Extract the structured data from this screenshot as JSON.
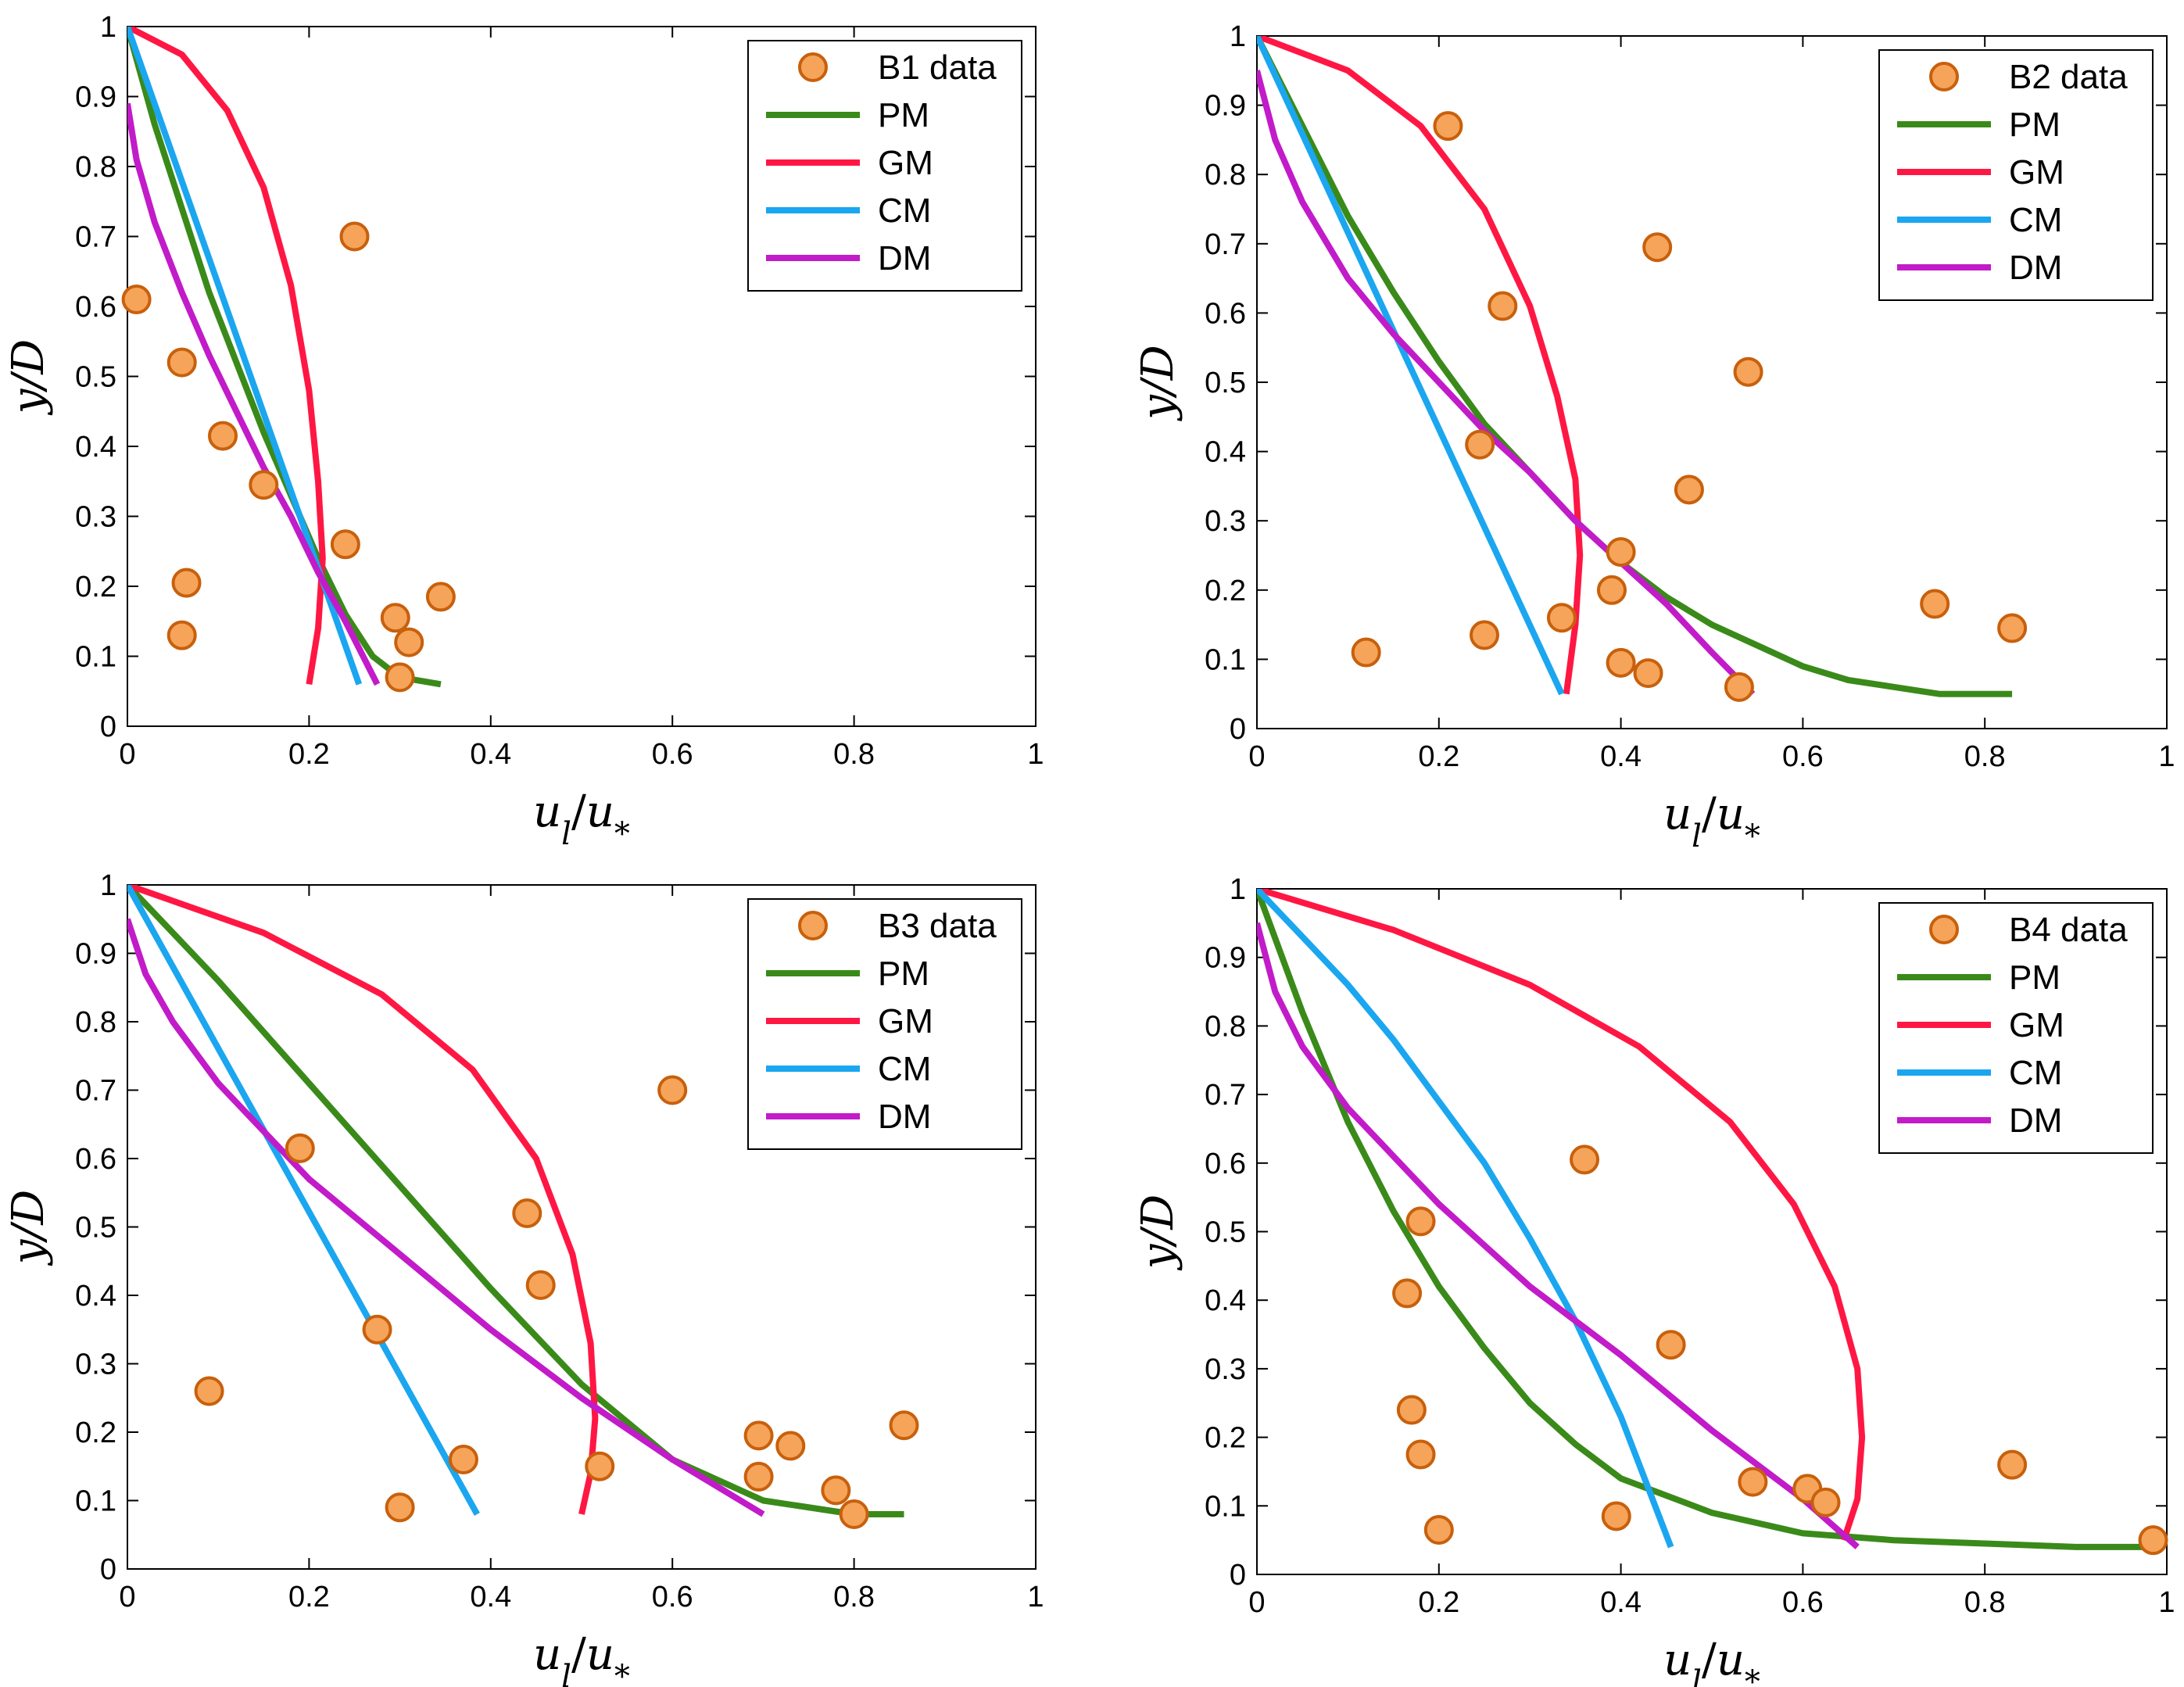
{
  "colors": {
    "PM": "#3a8a1a",
    "GM": "#ff1744",
    "CM": "#1ba6f0",
    "DM": "#c21bc9",
    "marker_fill": "#f5a45a",
    "marker_edge": "#c8600c"
  },
  "chart_data": [
    {
      "type": "scatter",
      "panel": "B1",
      "xlabel": "u_l/u_*",
      "ylabel": "y/D",
      "xlim": [
        0,
        1
      ],
      "ylim": [
        0,
        1
      ],
      "xticks": [
        "0",
        "0.2",
        "0.4",
        "0.6",
        "0.8",
        "1"
      ],
      "yticks": [
        "0",
        "0.1",
        "0.2",
        "0.3",
        "0.4",
        "0.5",
        "0.6",
        "0.7",
        "0.8",
        "0.9",
        "1"
      ],
      "grid": false,
      "legend_position": "top-right",
      "legend": [
        "B1 data",
        "PM",
        "GM",
        "CM",
        "DM"
      ],
      "data": {
        "x": [
          0.01,
          0.06,
          0.065,
          0.06,
          0.105,
          0.15,
          0.24,
          0.25,
          0.295,
          0.31,
          0.345,
          0.3
        ],
        "y": [
          0.61,
          0.52,
          0.205,
          0.13,
          0.415,
          0.345,
          0.26,
          0.7,
          0.155,
          0.12,
          0.185,
          0.07
        ]
      },
      "series": [
        {
          "name": "PM",
          "x": [
            0,
            0.03,
            0.06,
            0.09,
            0.12,
            0.15,
            0.18,
            0.21,
            0.24,
            0.27,
            0.3,
            0.345
          ],
          "y": [
            1.0,
            0.86,
            0.74,
            0.62,
            0.52,
            0.42,
            0.33,
            0.24,
            0.16,
            0.1,
            0.07,
            0.06
          ]
        },
        {
          "name": "GM",
          "x": [
            0,
            0.06,
            0.11,
            0.15,
            0.18,
            0.2,
            0.21,
            0.215,
            0.21,
            0.2
          ],
          "y": [
            1.0,
            0.96,
            0.88,
            0.77,
            0.63,
            0.48,
            0.35,
            0.24,
            0.14,
            0.06
          ]
        },
        {
          "name": "CM",
          "x": [
            0,
            0.255
          ],
          "y": [
            1.0,
            0.06
          ]
        },
        {
          "name": "DM",
          "x": [
            0,
            0.01,
            0.03,
            0.06,
            0.09,
            0.12,
            0.15,
            0.18,
            0.21,
            0.24,
            0.275
          ],
          "y": [
            0.89,
            0.81,
            0.72,
            0.62,
            0.53,
            0.45,
            0.37,
            0.3,
            0.22,
            0.15,
            0.06
          ]
        }
      ]
    },
    {
      "type": "scatter",
      "panel": "B2",
      "xlabel": "u_l/u_*",
      "ylabel": "y/D",
      "xlim": [
        0,
        1
      ],
      "ylim": [
        0,
        1
      ],
      "xticks": [
        "0",
        "0.2",
        "0.4",
        "0.6",
        "0.8",
        "1"
      ],
      "yticks": [
        "0",
        "0.1",
        "0.2",
        "0.3",
        "0.4",
        "0.5",
        "0.6",
        "0.7",
        "0.8",
        "0.9",
        "1"
      ],
      "grid": false,
      "legend_position": "top-right",
      "legend": [
        "B2 data",
        "PM",
        "GM",
        "CM",
        "DM"
      ],
      "data": {
        "x": [
          0.21,
          0.27,
          0.44,
          0.54,
          0.245,
          0.475,
          0.4,
          0.39,
          0.335,
          0.25,
          0.12,
          0.4,
          0.43,
          0.53,
          0.745,
          0.83
        ],
        "y": [
          0.87,
          0.61,
          0.695,
          0.515,
          0.41,
          0.345,
          0.255,
          0.2,
          0.16,
          0.135,
          0.11,
          0.095,
          0.08,
          0.06,
          0.18,
          0.145
        ]
      },
      "series": [
        {
          "name": "PM",
          "x": [
            0,
            0.05,
            0.1,
            0.15,
            0.2,
            0.25,
            0.3,
            0.35,
            0.4,
            0.45,
            0.5,
            0.55,
            0.6,
            0.65,
            0.7,
            0.75,
            0.83
          ],
          "y": [
            1.0,
            0.87,
            0.74,
            0.63,
            0.53,
            0.44,
            0.37,
            0.3,
            0.24,
            0.19,
            0.15,
            0.12,
            0.09,
            0.07,
            0.06,
            0.05,
            0.05
          ]
        },
        {
          "name": "GM",
          "x": [
            0,
            0.1,
            0.18,
            0.25,
            0.3,
            0.33,
            0.35,
            0.355,
            0.35,
            0.34
          ],
          "y": [
            1.0,
            0.95,
            0.87,
            0.75,
            0.61,
            0.48,
            0.36,
            0.25,
            0.15,
            0.05
          ]
        },
        {
          "name": "CM",
          "x": [
            0,
            0.335
          ],
          "y": [
            1.0,
            0.05
          ]
        },
        {
          "name": "DM",
          "x": [
            0,
            0.02,
            0.05,
            0.1,
            0.15,
            0.2,
            0.25,
            0.3,
            0.35,
            0.4,
            0.45,
            0.5,
            0.545
          ],
          "y": [
            0.95,
            0.85,
            0.76,
            0.65,
            0.57,
            0.5,
            0.43,
            0.37,
            0.3,
            0.24,
            0.18,
            0.11,
            0.05
          ]
        }
      ]
    },
    {
      "type": "scatter",
      "panel": "B3",
      "xlabel": "u_l/u_*",
      "ylabel": "y/D",
      "xlim": [
        0,
        1
      ],
      "ylim": [
        0,
        1
      ],
      "xticks": [
        "0",
        "0.2",
        "0.4",
        "0.6",
        "0.8",
        "1"
      ],
      "yticks": [
        "0",
        "0.1",
        "0.2",
        "0.3",
        "0.4",
        "0.5",
        "0.6",
        "0.7",
        "0.8",
        "0.9",
        "1"
      ],
      "grid": false,
      "legend_position": "top-right",
      "legend": [
        "B3 data",
        "PM",
        "GM",
        "CM",
        "DM"
      ],
      "data": {
        "x": [
          0.6,
          0.19,
          0.44,
          0.455,
          0.275,
          0.09,
          0.37,
          0.3,
          0.52,
          0.695,
          0.73,
          0.855,
          0.695,
          0.78,
          0.8
        ],
        "y": [
          0.7,
          0.615,
          0.52,
          0.415,
          0.35,
          0.26,
          0.16,
          0.09,
          0.15,
          0.195,
          0.18,
          0.21,
          0.135,
          0.115,
          0.08
        ]
      },
      "series": [
        {
          "name": "PM",
          "x": [
            0,
            0.1,
            0.2,
            0.3,
            0.4,
            0.5,
            0.6,
            0.7,
            0.8,
            0.855
          ],
          "y": [
            1.0,
            0.86,
            0.71,
            0.56,
            0.41,
            0.27,
            0.16,
            0.1,
            0.08,
            0.08
          ]
        },
        {
          "name": "GM",
          "x": [
            0,
            0.15,
            0.28,
            0.38,
            0.45,
            0.49,
            0.51,
            0.515,
            0.51,
            0.5
          ],
          "y": [
            1.0,
            0.93,
            0.84,
            0.73,
            0.6,
            0.46,
            0.33,
            0.22,
            0.14,
            0.08
          ]
        },
        {
          "name": "CM",
          "x": [
            0,
            0.385
          ],
          "y": [
            1.0,
            0.08
          ]
        },
        {
          "name": "DM",
          "x": [
            0,
            0.02,
            0.05,
            0.1,
            0.2,
            0.3,
            0.4,
            0.5,
            0.6,
            0.7
          ],
          "y": [
            0.95,
            0.87,
            0.8,
            0.71,
            0.57,
            0.46,
            0.35,
            0.25,
            0.16,
            0.08
          ]
        }
      ]
    },
    {
      "type": "scatter",
      "panel": "B4",
      "xlabel": "u_l/u_*",
      "ylabel": "y/D",
      "xlim": [
        0,
        1
      ],
      "ylim": [
        0,
        1
      ],
      "xticks": [
        "0",
        "0.2",
        "0.4",
        "0.6",
        "0.8",
        "1"
      ],
      "yticks": [
        "0",
        "0.1",
        "0.2",
        "0.3",
        "0.4",
        "0.5",
        "0.6",
        "0.7",
        "0.8",
        "0.9",
        "1"
      ],
      "grid": false,
      "legend_position": "top-right",
      "legend": [
        "B4 data",
        "PM",
        "GM",
        "CM",
        "DM"
      ],
      "data": {
        "x": [
          0.36,
          0.18,
          0.165,
          0.455,
          0.17,
          0.18,
          0.2,
          0.395,
          0.545,
          0.605,
          0.625,
          0.83,
          0.985
        ],
        "y": [
          0.605,
          0.515,
          0.41,
          0.335,
          0.24,
          0.175,
          0.065,
          0.085,
          0.135,
          0.125,
          0.105,
          0.16,
          0.05
        ]
      },
      "series": [
        {
          "name": "PM",
          "x": [
            0,
            0.05,
            0.1,
            0.15,
            0.2,
            0.25,
            0.3,
            0.35,
            0.4,
            0.5,
            0.6,
            0.7,
            0.8,
            0.9,
            0.98
          ],
          "y": [
            1.0,
            0.82,
            0.66,
            0.53,
            0.42,
            0.33,
            0.25,
            0.19,
            0.14,
            0.09,
            0.06,
            0.05,
            0.045,
            0.04,
            0.04
          ]
        },
        {
          "name": "GM",
          "x": [
            0,
            0.15,
            0.3,
            0.42,
            0.52,
            0.59,
            0.635,
            0.66,
            0.665,
            0.66,
            0.645
          ],
          "y": [
            1.0,
            0.94,
            0.86,
            0.77,
            0.66,
            0.54,
            0.42,
            0.3,
            0.2,
            0.11,
            0.05
          ]
        },
        {
          "name": "CM",
          "x": [
            0,
            0.05,
            0.1,
            0.15,
            0.2,
            0.25,
            0.3,
            0.35,
            0.4,
            0.455
          ],
          "y": [
            1.0,
            0.93,
            0.86,
            0.78,
            0.69,
            0.6,
            0.49,
            0.37,
            0.23,
            0.04
          ]
        },
        {
          "name": "DM",
          "x": [
            0,
            0.02,
            0.05,
            0.1,
            0.2,
            0.3,
            0.4,
            0.5,
            0.6,
            0.66
          ],
          "y": [
            0.95,
            0.85,
            0.77,
            0.68,
            0.54,
            0.42,
            0.32,
            0.21,
            0.11,
            0.04
          ]
        }
      ]
    }
  ]
}
